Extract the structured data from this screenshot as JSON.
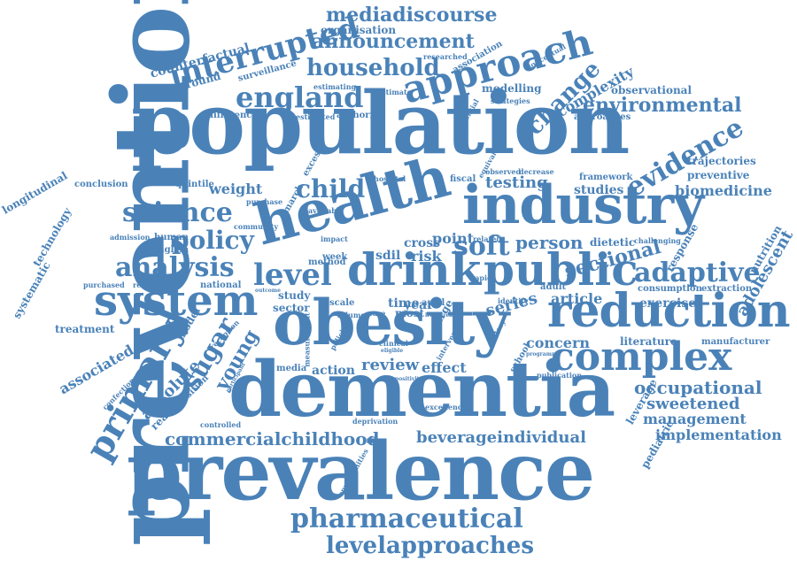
{
  "accent_color": "#4a82b8",
  "background_color": "#ffffff",
  "words": {
    "prevention": "prevention",
    "population": "population",
    "prevalence": "prevalence",
    "dementia": "dementia",
    "obesity": "obesity",
    "health": "health",
    "industry": "industry",
    "drink": "drink",
    "public": "public",
    "reduction": "reduction",
    "approach": "approach",
    "system": "system",
    "complex": "complex",
    "primary": "primary",
    "interrupted": "interrupted",
    "england": "england",
    "household": "household",
    "announcement": "announcement",
    "mediadiscourse": "mediadiscourse",
    "pharmaceutical": "pharmaceutical",
    "levelapproaches": "levelapproaches",
    "commercialchildhood": "commercialchildhood",
    "beverageindividual": "beverageindividual",
    "environmental": "environmental",
    "adaptive": "adaptive",
    "evidence": "evidence",
    "change": "change",
    "science": "science",
    "policy": "policy",
    "analysis": "analysis",
    "level": "level",
    "child": "child",
    "soft": "soft",
    "sugar": "sugar",
    "young": "young",
    "occupational": "occupational",
    "sweetened": "sweetened",
    "management": "management",
    "implementation": "implementation",
    "biomedicine": "biomedicine",
    "testing": "testing",
    "person": "person",
    "sectional": "sectional",
    "weight": "weight",
    "review": "review",
    "effect": "effect",
    "action": "action",
    "concern": "concern",
    "series": "series",
    "article": "article",
    "exercise": "exercise",
    "literature": "literature",
    "associated": "associated",
    "absolute": "absolute",
    "treatment": "treatment",
    "counterfactual": "counterfactual",
    "background": "background",
    "organisation": "organisation",
    "complexity": "complexity",
    "modelling": "modelling",
    "observational": "observational",
    "approaches": "approaches",
    "trajectories": "trajectories",
    "preventive": "preventive",
    "studies": "studies",
    "longitudinal": "longitudinal",
    "technology": "technology",
    "systematic": "systematic",
    "conclusion": "conclusion",
    "quintile": "quintile",
    "year": "year",
    "time": "time",
    "point": "point",
    "cross": "cross",
    "risk": "risk",
    "sdil": "sdil",
    "adolescent": "adolescent",
    "nutrition": "nutrition",
    "response": "response",
    "dietetic": "dietetic",
    "pediatric": "pediatric",
    "leverage": "leverage",
    "difference": "difference",
    "surveillance": "surveillance",
    "estimating": "estimating",
    "estimate": "estimate",
    "estimated": "estimated",
    "authority": "authority",
    "association": "association",
    "researched": "researched",
    "conceptual": "conceptual",
    "framework": "framework",
    "fiscal": "fiscal",
    "human": "human",
    "english": "english",
    "admission": "admission",
    "purchase": "purchase",
    "purchased": "purchased",
    "research": "research",
    "national": "national",
    "method": "method",
    "study": "study",
    "sector": "sector",
    "most": "most",
    "volume": "volume",
    "care": "care",
    "model": "model",
    "reaction": "reaction",
    "opposition": "opposition",
    "controlled": "controlled",
    "media": "media",
    "school": "school",
    "publication": "publication",
    "excellence": "excellence",
    "deprivation": "deprivation",
    "opportunities": "opportunities",
    "manufacturer": "manufacturer",
    "consumption": "consumption",
    "extraction": "extraction",
    "challenging": "challenging",
    "adult": "adult",
    "identify": "identify",
    "hospital": "hospital",
    "available": "available",
    "community": "community",
    "march": "march",
    "excess": "excess",
    "week": "week",
    "april": "april",
    "surge": "surge",
    "rapid": "rapid",
    "confectionery": "confectionery",
    "reception": "reception",
    "strategies": "strategies",
    "potential": "potential",
    "observed": "observed",
    "decrease": "decrease",
    "equivalent": "equivalent",
    "related": "related",
    "impact": "impact",
    "scale": "scale",
    "measurement": "measurement",
    "policies": "policies",
    "participant": "participant",
    "outcome": "outcome",
    "clinical": "clinical",
    "eligible": "eligible",
    "intervene": "intervene",
    "positivity": "positivity",
    "programme": "programme",
    "greatest": "greatest",
    "living": "living",
    "unitary": "unitary"
  }
}
